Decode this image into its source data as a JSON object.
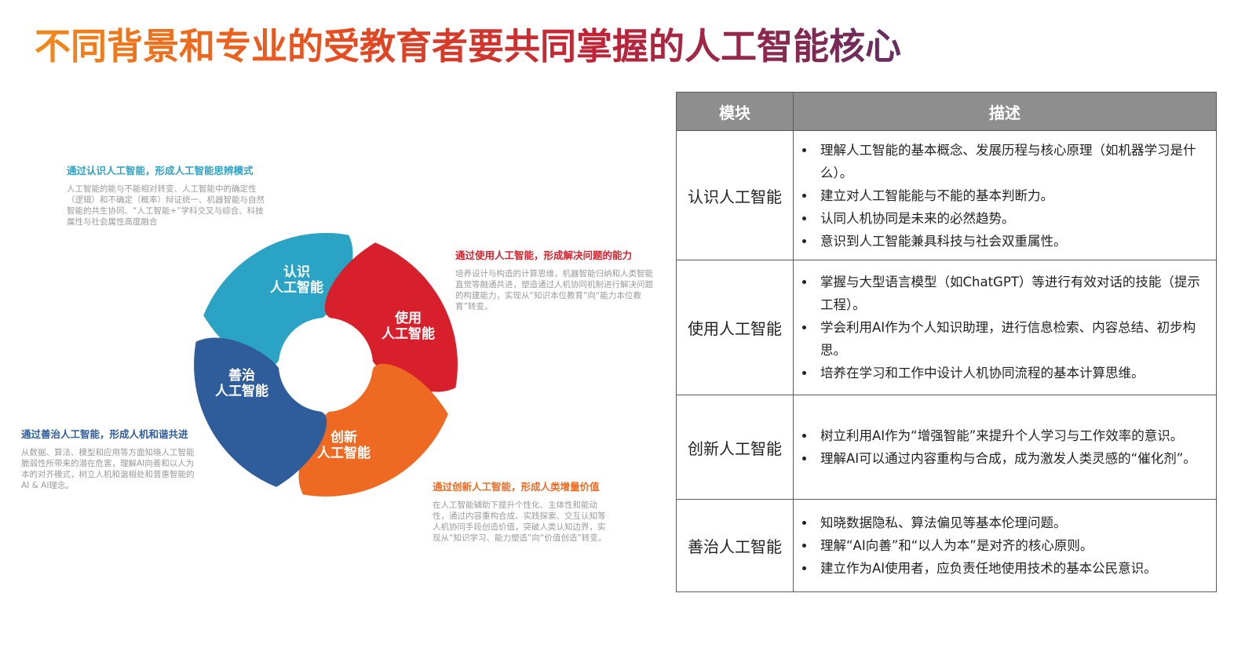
{
  "title": "不同背景和专业的受教育者要共同掌握的人工智能核心",
  "colors": {
    "teal": "#2aa3c4",
    "red": "#d7202b",
    "orange": "#ee6a22",
    "navy": "#2f5c9a"
  },
  "cycle": {
    "segments": [
      {
        "line1": "认识",
        "line2": "人工智能",
        "color": "#2aa3c4"
      },
      {
        "line1": "使用",
        "line2": "人工智能",
        "color": "#d7202b"
      },
      {
        "line1": "创新",
        "line2": "人工智能",
        "color": "#ee6a22"
      },
      {
        "line1": "善治",
        "line2": "人工智能",
        "color": "#2f5c9a"
      }
    ]
  },
  "annotations": {
    "know": {
      "heading": "通过认识人工智能，形成人工智能思辨模式",
      "body": "人工智能的能与不能相对转变、人工智能中的确定性（逻辑）和不确定（概率）辩证统一、机器智能与自然智能的共生协同、“人工智能+”学科交叉与综合、科技属性与社会属性高度融合"
    },
    "use": {
      "heading": "通过使用人工智能，形成解决问题的能力",
      "body": "培养设计与构造的计算思维，机器智能归纳和人类智能直觉等融通共进，塑造通过人机协同机制进行解决问题的构建能力，实现从“知识本位教育”向“能力本位教育”转变。"
    },
    "govern": {
      "heading": "通过善治人工智能，形成人机和谐共进",
      "body": "从数据、算法、模型和应用等方面知晓人工智能脆弱性所带来的潜在危害，理解AI向善和以人为本的对齐模式，树立人机和谐相处和普惠智能的AI & AI理念。"
    },
    "create": {
      "heading": "通过创新人工智能，形成人类增量价值",
      "body": "在人工智能辅助下提升个性化、主体性和能动性，通过内容重构合成、实践探索、交互认知等人机协同手段创造价值，突破人类认知边界，实现从“知识学习、能力塑造”向“价值创造”转变。"
    }
  },
  "table": {
    "headers": [
      "模块",
      "描述"
    ],
    "rows": [
      {
        "module": "认识人工智能",
        "items": [
          "理解人工智能的基本概念、发展历程与核心原理（如机器学习是什么）。",
          "建立对人工智能能与不能的基本判断力。",
          "认同人机协同是未来的必然趋势。",
          "意识到人工智能兼具科技与社会双重属性。"
        ]
      },
      {
        "module": "使用人工智能",
        "items": [
          "掌握与大型语言模型（如ChatGPT）等进行有效对话的技能（提示工程）。",
          "学会利用AI作为个人知识助理，进行信息检索、内容总结、初步构思。",
          "培养在学习和工作中设计人机协同流程的基本计算思维。"
        ]
      },
      {
        "module": "创新人工智能",
        "items": [
          "树立利用AI作为“增强智能”来提升个人学习与工作效率的意识。",
          "理解AI可以通过内容重构与合成，成为激发人类灵感的“催化剂”。"
        ]
      },
      {
        "module": "善治人工智能",
        "items": [
          "知晓数据隐私、算法偏见等基本伦理问题。",
          "理解“AI向善”和“以人为本”是对齐的核心原则。",
          "建立作为AI使用者，应负责任地使用技术的基本公民意识。"
        ]
      }
    ]
  }
}
